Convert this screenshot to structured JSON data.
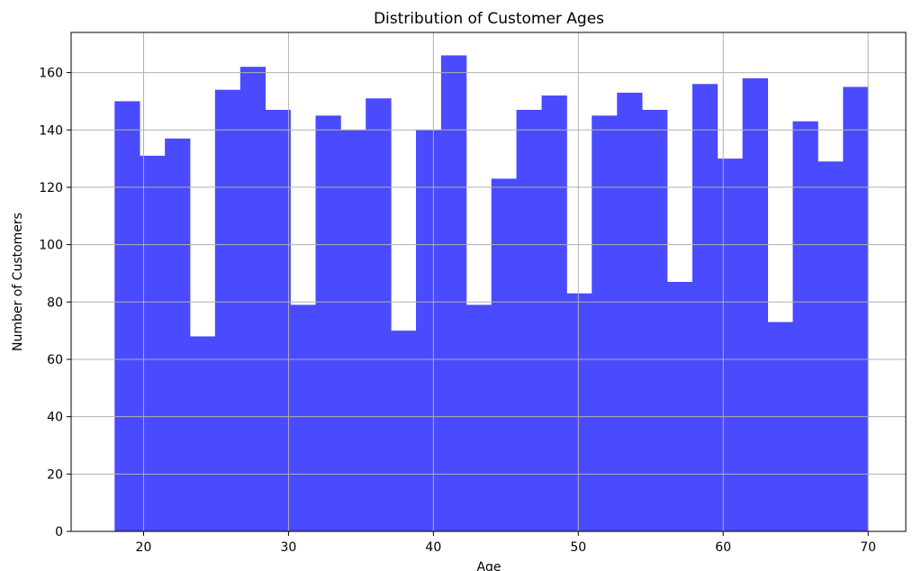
{
  "chart_data": {
    "type": "bar",
    "title": "Distribution of Customer Ages",
    "xlabel": "Age",
    "ylabel": "Number of Customers",
    "xlim": [
      15,
      72.6
    ],
    "ylim": [
      0,
      174
    ],
    "xticks": [
      20,
      30,
      40,
      50,
      60,
      70
    ],
    "yticks": [
      0,
      20,
      40,
      60,
      80,
      100,
      120,
      140,
      160
    ],
    "grid": true,
    "bar_color": "#4a4aff",
    "bins": [
      {
        "start": 18.0,
        "end": 19.73,
        "count": 150
      },
      {
        "start": 19.73,
        "end": 21.47,
        "count": 131
      },
      {
        "start": 21.47,
        "end": 23.2,
        "count": 137
      },
      {
        "start": 23.2,
        "end": 24.93,
        "count": 68
      },
      {
        "start": 24.93,
        "end": 26.67,
        "count": 154
      },
      {
        "start": 26.67,
        "end": 28.4,
        "count": 162
      },
      {
        "start": 28.4,
        "end": 30.13,
        "count": 147
      },
      {
        "start": 30.13,
        "end": 31.87,
        "count": 79
      },
      {
        "start": 31.87,
        "end": 33.6,
        "count": 145
      },
      {
        "start": 33.6,
        "end": 35.33,
        "count": 140
      },
      {
        "start": 35.33,
        "end": 37.07,
        "count": 151
      },
      {
        "start": 37.07,
        "end": 38.8,
        "count": 70
      },
      {
        "start": 38.8,
        "end": 40.53,
        "count": 140
      },
      {
        "start": 40.53,
        "end": 42.27,
        "count": 166
      },
      {
        "start": 42.27,
        "end": 44.0,
        "count": 79
      },
      {
        "start": 44.0,
        "end": 45.73,
        "count": 123
      },
      {
        "start": 45.73,
        "end": 47.47,
        "count": 147
      },
      {
        "start": 47.47,
        "end": 49.2,
        "count": 152
      },
      {
        "start": 49.2,
        "end": 50.93,
        "count": 83
      },
      {
        "start": 50.93,
        "end": 52.67,
        "count": 145
      },
      {
        "start": 52.67,
        "end": 54.4,
        "count": 153
      },
      {
        "start": 54.4,
        "end": 56.13,
        "count": 147
      },
      {
        "start": 56.13,
        "end": 57.87,
        "count": 87
      },
      {
        "start": 57.87,
        "end": 59.6,
        "count": 156
      },
      {
        "start": 59.6,
        "end": 61.33,
        "count": 130
      },
      {
        "start": 61.33,
        "end": 63.07,
        "count": 158
      },
      {
        "start": 63.07,
        "end": 64.8,
        "count": 73
      },
      {
        "start": 64.8,
        "end": 66.53,
        "count": 143
      },
      {
        "start": 66.53,
        "end": 68.27,
        "count": 129
      },
      {
        "start": 68.27,
        "end": 70.0,
        "count": 155
      }
    ]
  }
}
